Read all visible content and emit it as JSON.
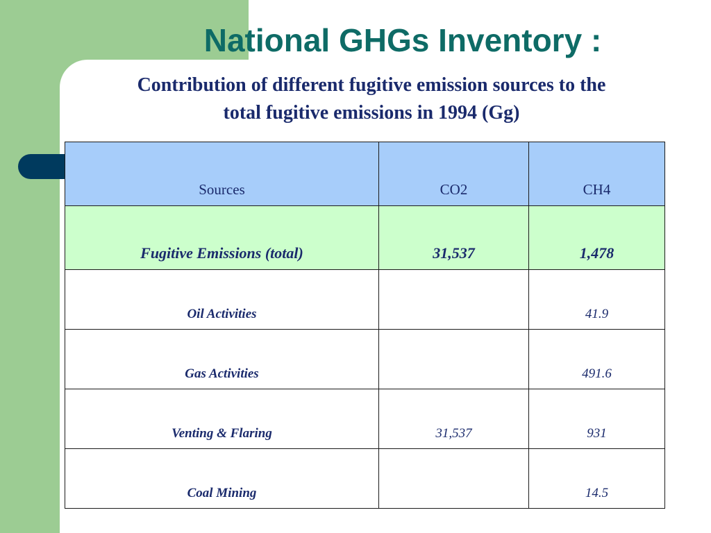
{
  "slide": {
    "title": "National GHGs Inventory :",
    "subtitle_line1": "Contribution of different fugitive emission sources to the",
    "subtitle_line2": "total fugitive emissions in 1994 (Gg)"
  },
  "table": {
    "headers": [
      "Sources",
      "CO2",
      "CH4"
    ],
    "total": {
      "source": "Fugitive Emissions (total)",
      "co2": "31,537",
      "ch4": "1,478"
    },
    "rows": [
      {
        "source": "Oil Activities",
        "co2": "",
        "ch4": "41.9"
      },
      {
        "source": "Gas Activities",
        "co2": "",
        "ch4": "491.6"
      },
      {
        "source": "Venting & Flaring",
        "co2": "31,537",
        "ch4": "931"
      },
      {
        "source": "Coal Mining",
        "co2": "",
        "ch4": "14.5"
      }
    ]
  },
  "colors": {
    "green_band": "#9ccc93",
    "navy_accent": "#003a5e",
    "title_teal": "#0e6b66",
    "text_navy": "#1a2a6c",
    "header_blue": "#a7cdfa",
    "total_green": "#ccffcc"
  }
}
